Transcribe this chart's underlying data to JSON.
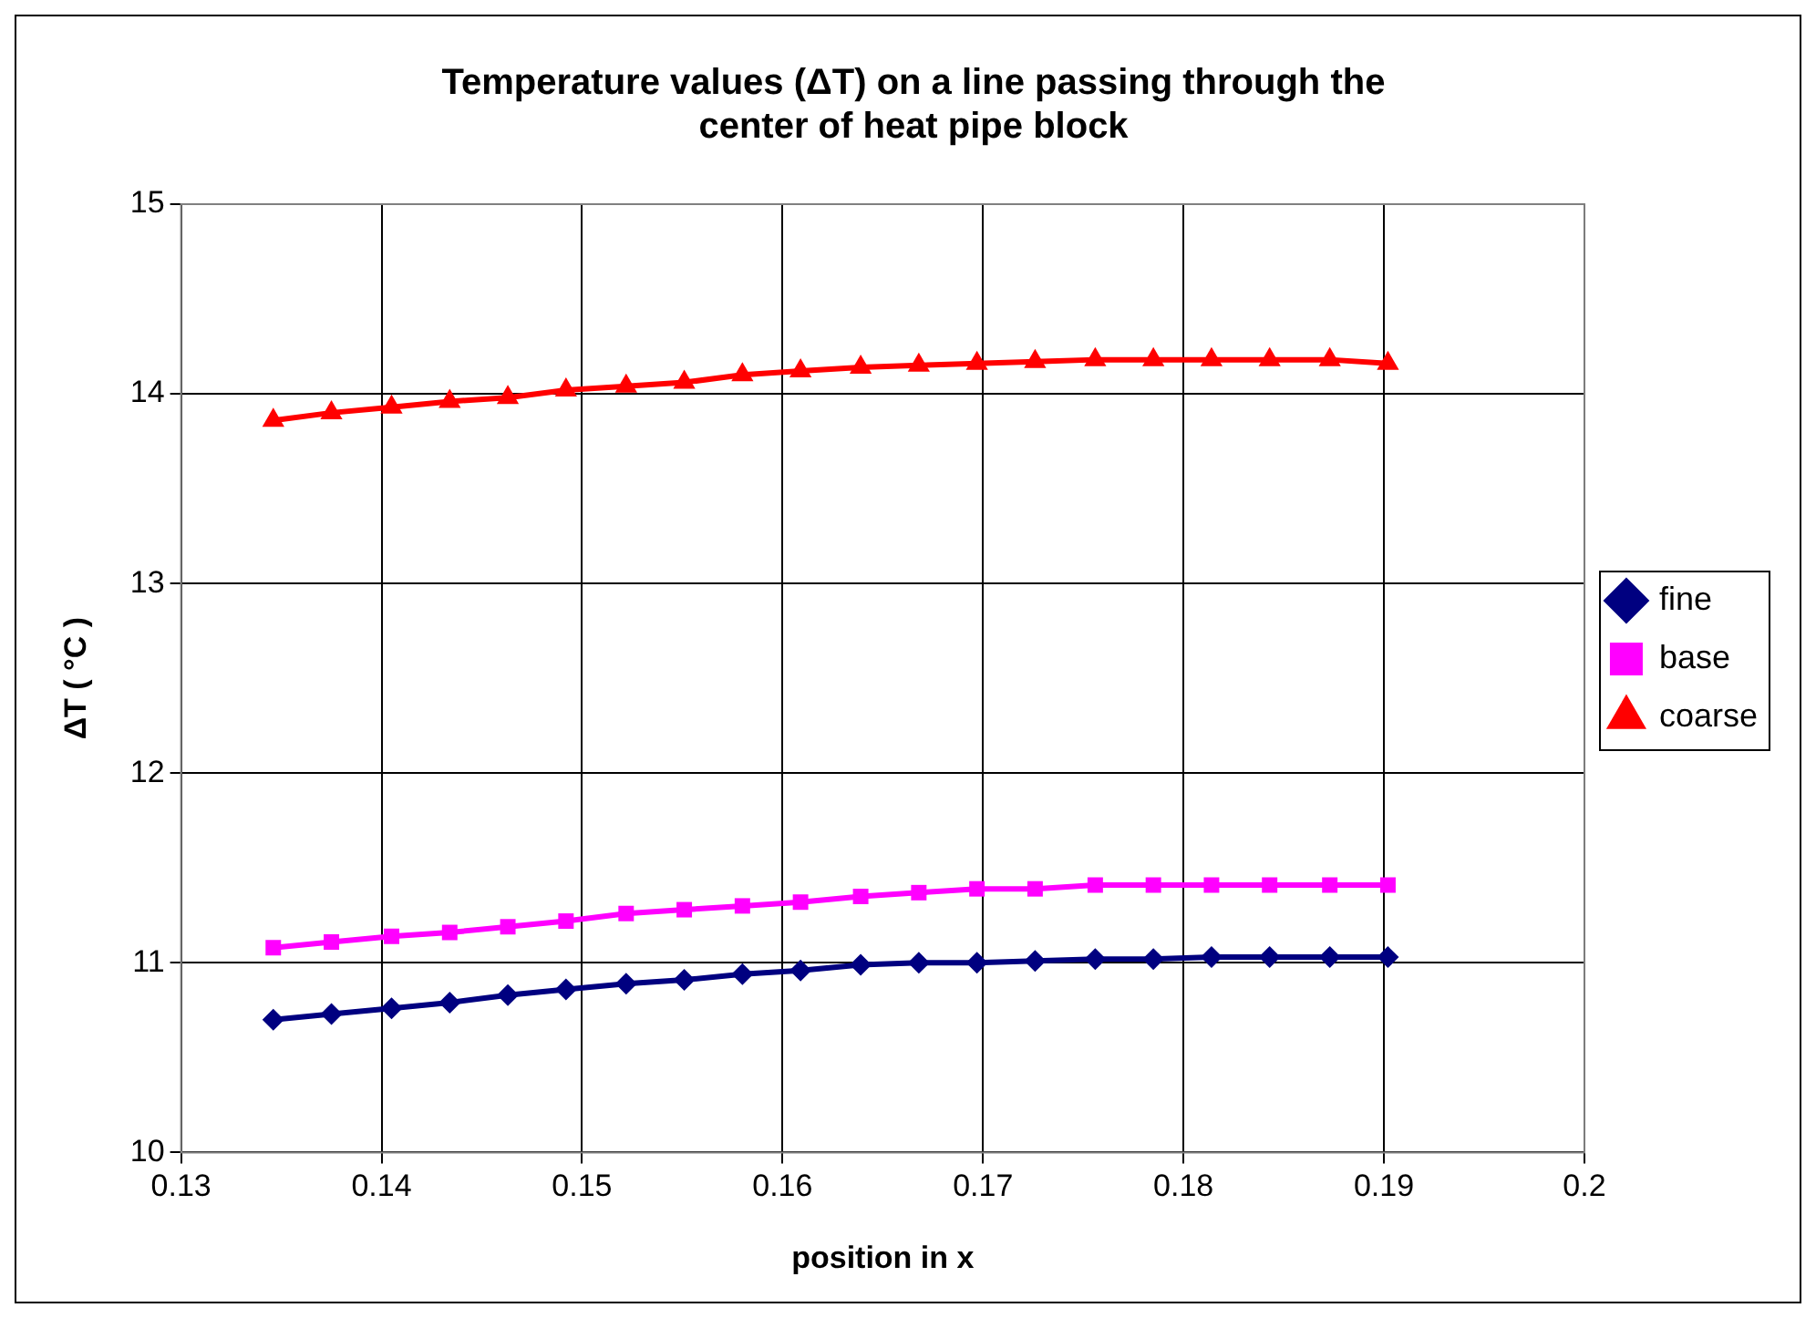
{
  "chart_data": {
    "type": "line",
    "title": "Temperature values (ΔT) on a line passing through the center of heat pipe block",
    "xlabel": "position in x",
    "ylabel": "ΔT ( °C )",
    "x": [
      0.1346,
      0.1375,
      0.1405,
      0.1434,
      0.1463,
      0.1492,
      0.1522,
      0.1551,
      0.158,
      0.1609,
      0.1639,
      0.1668,
      0.1697,
      0.1726,
      0.1756,
      0.1785,
      0.1814,
      0.1843,
      0.1873,
      0.1902
    ],
    "series": [
      {
        "name": "fine",
        "color": "#000080",
        "marker": "diamond",
        "values": [
          10.7,
          10.73,
          10.76,
          10.79,
          10.83,
          10.86,
          10.89,
          10.91,
          10.94,
          10.96,
          10.99,
          11.0,
          11.0,
          11.01,
          11.02,
          11.02,
          11.03,
          11.03,
          11.03,
          11.03
        ]
      },
      {
        "name": "base",
        "color": "#ff00ff",
        "marker": "square",
        "values": [
          11.08,
          11.11,
          11.14,
          11.16,
          11.19,
          11.22,
          11.26,
          11.28,
          11.3,
          11.32,
          11.35,
          11.37,
          11.39,
          11.39,
          11.41,
          11.41,
          11.41,
          11.41,
          11.41,
          11.41
        ]
      },
      {
        "name": "coarse",
        "color": "#ff0000",
        "marker": "triangle",
        "values": [
          13.86,
          13.9,
          13.93,
          13.96,
          13.98,
          14.02,
          14.04,
          14.06,
          14.1,
          14.12,
          14.14,
          14.15,
          14.16,
          14.17,
          14.18,
          14.18,
          14.18,
          14.18,
          14.18,
          14.16
        ]
      }
    ],
    "xlim": [
      0.13,
      0.2
    ],
    "xticks": [
      0.13,
      0.14,
      0.15,
      0.16,
      0.17,
      0.18,
      0.19,
      0.2
    ],
    "ylim": [
      10,
      15
    ],
    "yticks": [
      10,
      11,
      12,
      13,
      14,
      15
    ],
    "grid": true,
    "legend": "right",
    "line_style": "solid"
  }
}
